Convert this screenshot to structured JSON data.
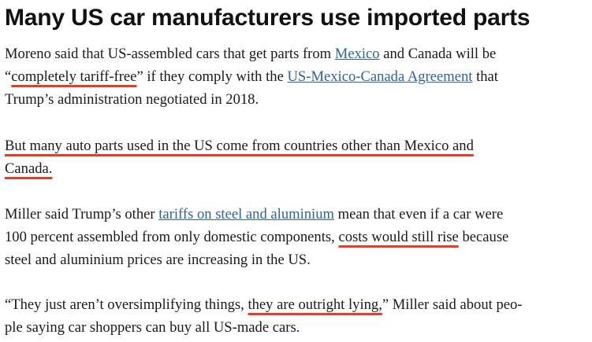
{
  "headline": "Many US car manufacturers use imported parts",
  "p1": {
    "l1_a": "Moreno said that US-assembled cars that get parts from ",
    "l1_link": "Mexico",
    "l1_b": " and Canada will be",
    "l2_q": "“",
    "l2_hl": "completely tariff-free",
    "l2_a": "” if they comply with the ",
    "l2_link": "US-Mexico-Canada Agreement",
    "l2_b": " that",
    "l3": "Trump’s administration negotiated in 2018."
  },
  "p2": {
    "l1_hl": "But many auto parts used in the US come from countries other than Mexico and",
    "l2_hl": "Canada."
  },
  "p3": {
    "l1_a": "Miller said Trump’s other ",
    "l1_link": "tariffs on steel and aluminium",
    "l1_b": " mean that even if a car were",
    "l2_a": "100 percent assembled from only domestic components, ",
    "l2_hl": "costs would still rise",
    "l2_b": " because",
    "l3": "steel and aluminium prices are increasing in the US."
  },
  "p4": {
    "l1_a": "“They just aren’t oversimplifying things, ",
    "l1_hl": "they are outright lying,",
    "l1_b": "” Miller said about peo-",
    "l2": "ple saying car shoppers can buy all US-made cars."
  },
  "colors": {
    "link": "#2f6399",
    "highlight_underline": "#e0412e",
    "text": "#1a1a1a"
  }
}
